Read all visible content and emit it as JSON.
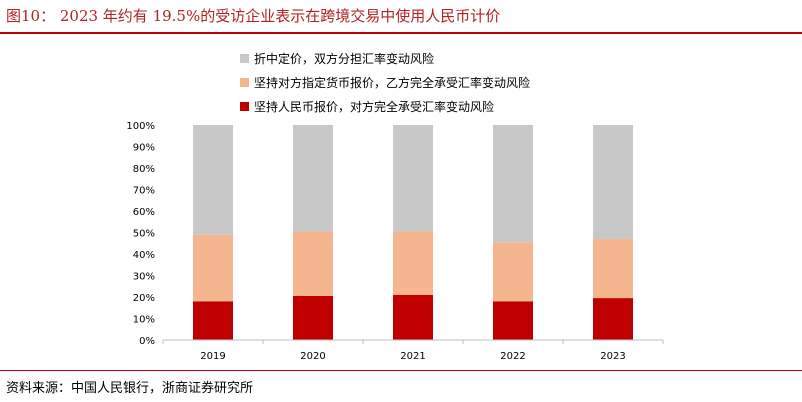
{
  "figure": {
    "title": "图10： 2023 年约有 19.5%的受访企业表示在跨境交易中使用人民币计价",
    "source": "资料来源：中国人民银行，浙商证券研究所"
  },
  "colors": {
    "title": "#b22222",
    "rule": "#c00000",
    "axis": "#bfbfbf"
  },
  "chart_data": {
    "type": "bar",
    "stacked": true,
    "categories": [
      "2019",
      "2020",
      "2021",
      "2022",
      "2023"
    ],
    "series": [
      {
        "name": "坚持人民币报价，对方完全承受汇率变动风险",
        "color": "#c00000",
        "values": [
          18,
          20.5,
          21,
          18,
          19.5
        ]
      },
      {
        "name": "坚持对方指定货币报价，乙方完全承受汇率变动风险",
        "color": "#f4b58f",
        "values": [
          31,
          30,
          29.5,
          27.5,
          27.5
        ]
      },
      {
        "name": "折中定价，双方分担汇率变动风险",
        "color": "#c8c8c8",
        "values": [
          51,
          49.5,
          49.5,
          54.5,
          53
        ]
      }
    ],
    "legend_order": [
      2,
      1,
      0
    ],
    "ylim": [
      0,
      100
    ],
    "yticks": [
      "0%",
      "10%",
      "20%",
      "30%",
      "40%",
      "50%",
      "60%",
      "70%",
      "80%",
      "90%",
      "100%"
    ],
    "legend_position": "top-left"
  }
}
